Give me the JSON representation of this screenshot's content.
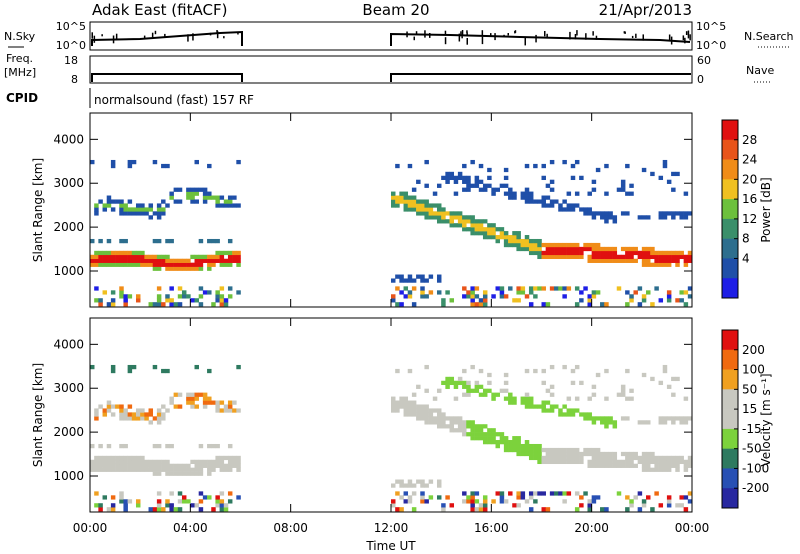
{
  "header": {
    "title": "Adak East (fitACF)",
    "beam": "Beam 20",
    "date": "21/Apr/2013"
  },
  "top_panels": {
    "nsky_label": "N.Sky",
    "nsearch_label": "N.Search",
    "noise_ticks": [
      "10^5",
      "10^0"
    ],
    "freq_label": "Freq.",
    "freq_unit": "[MHz]",
    "freq_ticks": [
      "18",
      "8"
    ],
    "nave_label": "Nave",
    "nave_ticks": [
      "60",
      "0"
    ],
    "cpid_label": "CPID",
    "cpid_text": "normalsound (fast) 157 RF"
  },
  "colors": {
    "power_scale": [
      "#1e1ee6",
      "#1f4fa8",
      "#2d6e8e",
      "#3a8f6a",
      "#6cc03c",
      "#f0c020",
      "#f08c18",
      "#e8541a",
      "#e01010"
    ],
    "velocity_scale": [
      "#2828a0",
      "#2850b4",
      "#2e7a60",
      "#7cd23c",
      "#c8c8c0",
      "#c8c8c0",
      "#f0a020",
      "#f06a10",
      "#e01010"
    ]
  },
  "chart_data": [
    {
      "type": "heatmap",
      "ylabel": "Slant Range [km]",
      "y_ticks": [
        1000,
        2000,
        3000,
        4000
      ],
      "ylim": [
        180,
        4600
      ],
      "x_ticks": [
        "00:00",
        "04:00",
        "08:00",
        "12:00",
        "16:00",
        "20:00",
        "00:00"
      ],
      "xlim_hours": [
        0,
        24
      ],
      "data_gap_hours": [
        6,
        12
      ],
      "colorbar": {
        "label": "Power [dB]",
        "ticks": [
          "28",
          "24",
          "20",
          "16",
          "12",
          "8",
          "4"
        ],
        "range": [
          0,
          32
        ]
      }
    },
    {
      "type": "heatmap",
      "ylabel": "Slant Range [km]",
      "y_ticks": [
        1000,
        2000,
        3000,
        4000
      ],
      "ylim": [
        180,
        4600
      ],
      "x_ticks": [
        "00:00",
        "04:00",
        "08:00",
        "12:00",
        "16:00",
        "20:00",
        "00:00"
      ],
      "xlabel": "Time UT",
      "xlim_hours": [
        0,
        24
      ],
      "data_gap_hours": [
        6,
        12
      ],
      "colorbar": {
        "label": "Velocity [m s⁻¹]",
        "ticks": [
          "200",
          "100",
          "50",
          "15",
          "-15",
          "-50",
          "-100",
          "-200"
        ],
        "range": [
          -250,
          250
        ]
      }
    }
  ]
}
